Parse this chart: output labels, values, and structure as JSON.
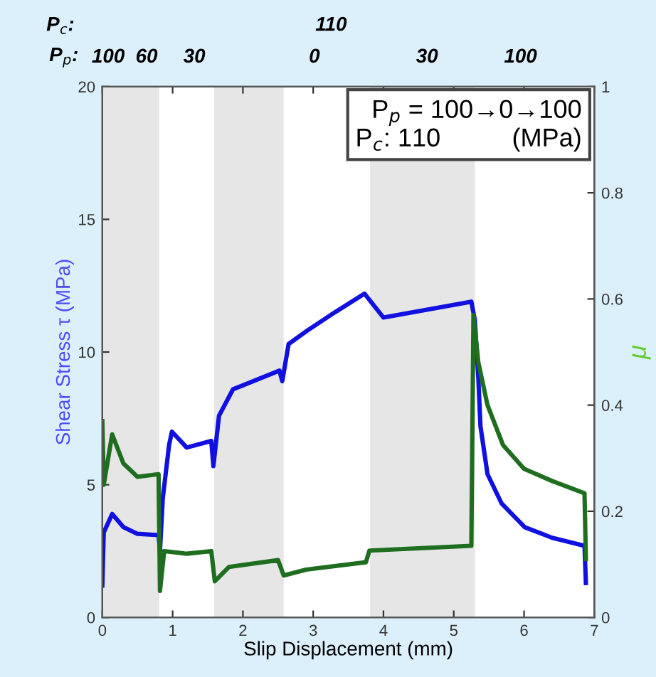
{
  "chart_data": {
    "type": "line",
    "xlabel": "Slip Displacement (mm)",
    "ylabel": "Shear Stress τ (MPa)",
    "y2label": "μ",
    "xlim": [
      0,
      7
    ],
    "xticks": [
      0,
      1,
      2,
      3,
      4,
      5,
      6,
      7
    ],
    "ylim": [
      0,
      20
    ],
    "yticks": [
      0,
      5,
      10,
      15,
      20
    ],
    "y2lim": [
      0,
      1
    ],
    "y2ticks": [
      0,
      0.2,
      0.4,
      0.6,
      0.8,
      1
    ],
    "grid": false,
    "marker": "none",
    "line_style": "solid",
    "bands": [
      {
        "axis": "x",
        "from": 0,
        "to": 0.81,
        "color": "#e6e6e6"
      },
      {
        "axis": "x",
        "from": 1.59,
        "to": 2.58,
        "color": "#e6e6e6"
      },
      {
        "axis": "x",
        "from": 3.81,
        "to": 5.3,
        "color": "#e6e6e6"
      }
    ],
    "series": [
      {
        "color": "#1010e0",
        "x": [
          0,
          0.02,
          0.14,
          0.3,
          0.5,
          0.8,
          0.82,
          0.86,
          0.95,
          0.99,
          1.2,
          1.55,
          1.58,
          1.66,
          1.86,
          2.05,
          2.52,
          2.56,
          2.65,
          2.91,
          3.31,
          3.73,
          4.0,
          5.25,
          5.3,
          5.35,
          5.38,
          5.48,
          5.68,
          6.01,
          6.4,
          6.86,
          6.88
        ],
        "values": [
          1.2,
          3.2,
          3.9,
          3.4,
          3.15,
          3.1,
          2.5,
          4.5,
          6.5,
          7.0,
          6.4,
          6.65,
          5.7,
          7.6,
          8.6,
          8.8,
          9.3,
          8.9,
          10.3,
          10.8,
          11.5,
          12.2,
          11.3,
          11.9,
          11.2,
          9.0,
          7.2,
          5.4,
          4.3,
          3.4,
          3.0,
          2.7,
          1.3
        ]
      },
      {
        "color": "#1f6e1f",
        "axis": "y2",
        "x": [
          0,
          0.02,
          0.14,
          0.3,
          0.5,
          0.8,
          0.82,
          0.88,
          1.2,
          1.55,
          1.6,
          1.8,
          2.5,
          2.58,
          2.9,
          3.75,
          3.8,
          5.25,
          5.28,
          5.35,
          5.48,
          5.7,
          6.0,
          6.4,
          6.86,
          6.88
        ],
        "values": [
          0.37,
          0.25,
          0.345,
          0.29,
          0.265,
          0.27,
          0.05,
          0.125,
          0.12,
          0.125,
          0.068,
          0.095,
          0.108,
          0.079,
          0.09,
          0.104,
          0.126,
          0.135,
          0.57,
          0.48,
          0.4,
          0.325,
          0.28,
          0.257,
          0.234,
          0.11
        ]
      }
    ],
    "annotations": [
      "P$_{c}$:",
      "110",
      "P$_{p}$:",
      "100",
      "60",
      "30",
      "0",
      "30",
      "100",
      "P$_{p}$ = 100→0→100\nP$_{c}$: 110          (MPa)"
    ]
  }
}
